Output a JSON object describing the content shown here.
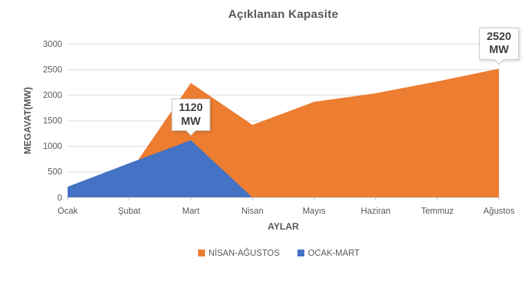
{
  "chart_data": {
    "type": "area",
    "title": "Açıklanan Kapasite",
    "xlabel": "AYLAR",
    "ylabel": "MEGAVAT(MW)",
    "categories": [
      "Ocak",
      "Şubat",
      "Mart",
      "Nisan",
      "Mayıs",
      "Haziran",
      "Temmuz",
      "Ağustos"
    ],
    "series": [
      {
        "name": "NİSAN-AĞUSTOS",
        "color": "#ED7D31",
        "values": [
          0,
          480,
          2240,
          1420,
          1870,
          2040,
          2270,
          2520
        ]
      },
      {
        "name": "OCAK-MART",
        "color": "#4472C4",
        "values": [
          210,
          670,
          1120,
          0,
          0,
          0,
          0,
          0
        ]
      }
    ],
    "ylim": [
      0,
      3000
    ],
    "ytick_step": 500,
    "grid": true,
    "legend_position": "bottom",
    "annotations": [
      {
        "value_line": "1120",
        "unit_line": "MW",
        "anchor_category": "Mart",
        "anchor_series": "OCAK-MART",
        "anchor_value": 1120
      },
      {
        "value_line": "2520",
        "unit_line": "MW",
        "anchor_category": "Ağustos",
        "anchor_series": "NİSAN-AĞUSTOS",
        "anchor_value": 2520
      }
    ]
  },
  "style_colors": {
    "grid": "#D9D9D9",
    "axis": "#BFBFBF",
    "text": "#595959",
    "callout_text": "#404040",
    "callout_border": "#BFBFBF"
  }
}
